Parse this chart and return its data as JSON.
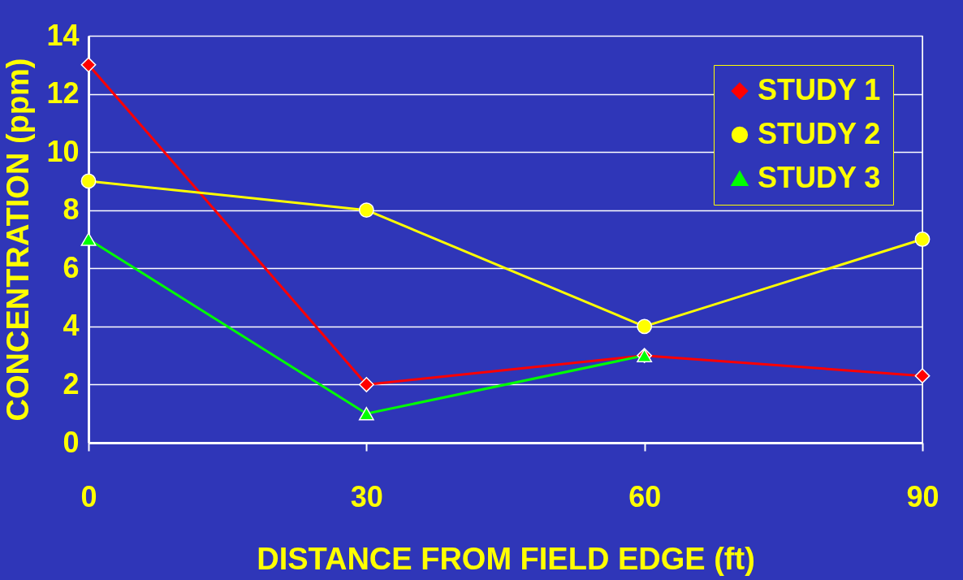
{
  "chart_data": {
    "type": "line",
    "xlabel": "DISTANCE FROM FIELD EDGE (ft)",
    "ylabel": "CONCENTRATION (ppm)",
    "x": [
      0,
      30,
      60,
      90
    ],
    "series": [
      {
        "name": "STUDY 1",
        "color": "#ff0000",
        "marker": "diamond",
        "values": [
          13,
          2,
          3,
          2.3
        ]
      },
      {
        "name": "STUDY 2",
        "color": "#ffff00",
        "marker": "circle",
        "values": [
          9,
          8,
          4,
          7
        ]
      },
      {
        "name": "STUDY 3",
        "color": "#00ff00",
        "marker": "triangle",
        "values": [
          7,
          1,
          3,
          null
        ]
      }
    ],
    "xlim": [
      0,
      90
    ],
    "xticks": [
      0,
      30,
      60,
      90
    ],
    "ylim": [
      0,
      14
    ],
    "yticks": [
      0,
      2,
      4,
      6,
      8,
      10,
      12,
      14
    ],
    "grid": "y",
    "legend": "top right",
    "line_style": "solid"
  }
}
